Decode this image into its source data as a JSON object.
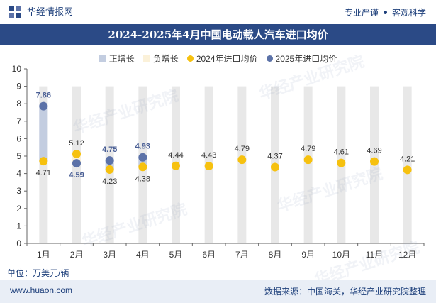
{
  "brand": {
    "name": "华经情报网",
    "slogan_1": "专业严谨",
    "slogan_2": "客观科学"
  },
  "title": "2024-2025年4月中国电动载人汽车进口均价",
  "legend": {
    "positive": "正增长",
    "negative": "负增长",
    "series_2024": "2024年进口均价",
    "series_2025": "2025年进口均价"
  },
  "unit": "单位：万美元/辆",
  "footer": {
    "website": "www.huaon.com",
    "source": "数据来源：中国海关，华经产业研究院整理"
  },
  "watermark": "华经产业研究院",
  "colors": {
    "positive": "#c3cde0",
    "negative": "#fbf1d9",
    "series_2024": "#f6c10f",
    "series_2025": "#5c72a8",
    "band": "#e8e8e8",
    "label_2025": "#4a5f95"
  },
  "chart_data": {
    "type": "scatter",
    "categories": [
      "1月",
      "2月",
      "3月",
      "4月",
      "5月",
      "6月",
      "7月",
      "8月",
      "9月",
      "10月",
      "11月",
      "12月"
    ],
    "ylim": [
      0,
      10
    ],
    "yticks": [
      0,
      1,
      2,
      3,
      4,
      5,
      6,
      7,
      8,
      9,
      10
    ],
    "series": [
      {
        "name": "2024年进口均价",
        "values": [
          4.71,
          5.12,
          4.23,
          4.38,
          4.44,
          4.43,
          4.79,
          4.37,
          4.79,
          4.61,
          4.69,
          4.21
        ]
      },
      {
        "name": "2025年进口均价",
        "values": [
          7.86,
          4.59,
          4.75,
          4.93,
          null,
          null,
          null,
          null,
          null,
          null,
          null,
          null
        ]
      }
    ],
    "labels_2024": [
      "4.71",
      "5.12",
      "4.23",
      "4.38",
      "4.44",
      "4.43",
      "4.79",
      "4.37",
      "4.79",
      "4.61",
      "4.69",
      "4.21"
    ],
    "labels_2025": [
      "7.86",
      "4.59",
      "4.75",
      "4.93"
    ]
  }
}
